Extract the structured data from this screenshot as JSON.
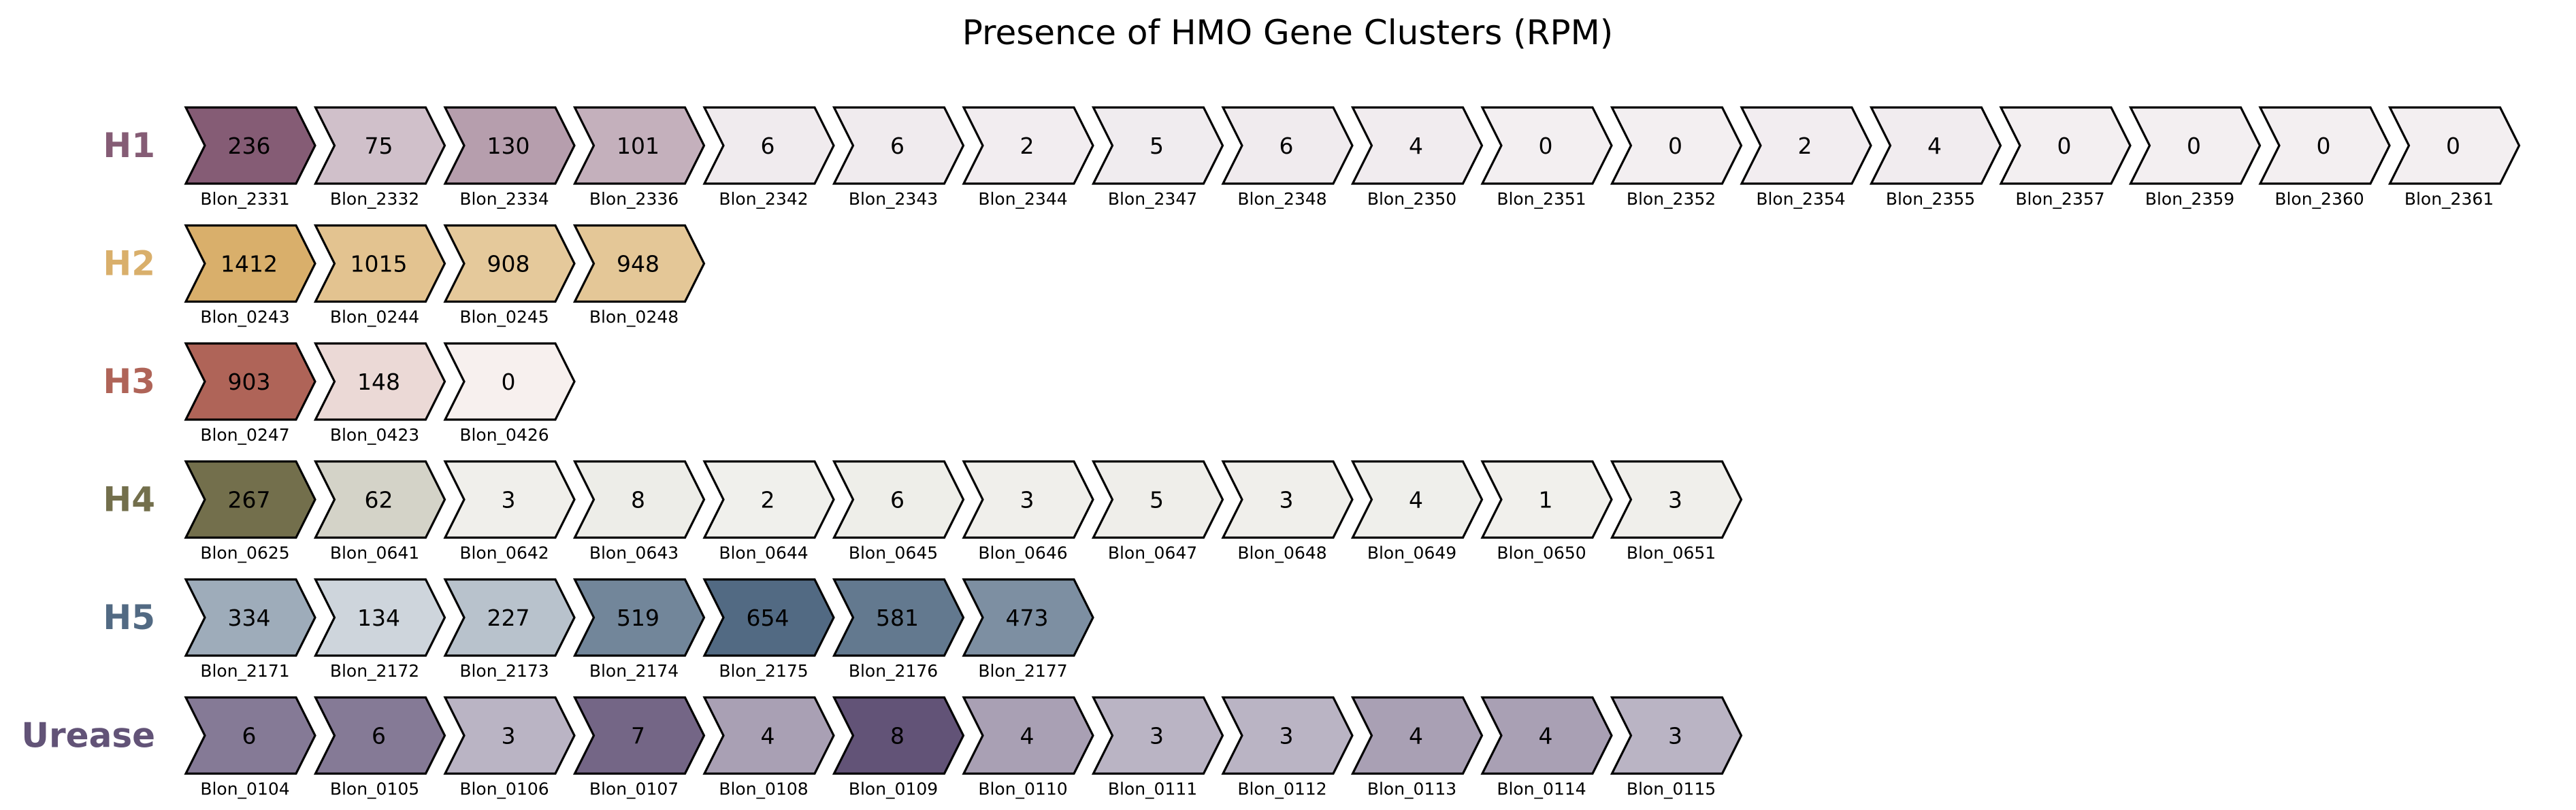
{
  "chart_data": {
    "type": "gene-cluster-diagram",
    "title": "Presence of HMO Gene Clusters (RPM)",
    "clusters": [
      {
        "name": "H1",
        "color": "#855c75",
        "genes": [
          {
            "id": "Blon_2331",
            "value": 236
          },
          {
            "id": "Blon_2332",
            "value": 75
          },
          {
            "id": "Blon_2334",
            "value": 130
          },
          {
            "id": "Blon_2336",
            "value": 101
          },
          {
            "id": "Blon_2342",
            "value": 6
          },
          {
            "id": "Blon_2343",
            "value": 6
          },
          {
            "id": "Blon_2344",
            "value": 2
          },
          {
            "id": "Blon_2347",
            "value": 5
          },
          {
            "id": "Blon_2348",
            "value": 6
          },
          {
            "id": "Blon_2350",
            "value": 4
          },
          {
            "id": "Blon_2351",
            "value": 0
          },
          {
            "id": "Blon_2352",
            "value": 0
          },
          {
            "id": "Blon_2354",
            "value": 2
          },
          {
            "id": "Blon_2355",
            "value": 4
          },
          {
            "id": "Blon_2357",
            "value": 0
          },
          {
            "id": "Blon_2359",
            "value": 0
          },
          {
            "id": "Blon_2360",
            "value": 0
          },
          {
            "id": "Blon_2361",
            "value": 0
          }
        ]
      },
      {
        "name": "H2",
        "color": "#d9af6b",
        "genes": [
          {
            "id": "Blon_0243",
            "value": 1412
          },
          {
            "id": "Blon_0244",
            "value": 1015
          },
          {
            "id": "Blon_0245",
            "value": 908
          },
          {
            "id": "Blon_0248",
            "value": 948
          }
        ]
      },
      {
        "name": "H3",
        "color": "#af6458",
        "genes": [
          {
            "id": "Blon_0247",
            "value": 903
          },
          {
            "id": "Blon_0423",
            "value": 148
          },
          {
            "id": "Blon_0426",
            "value": 0
          }
        ]
      },
      {
        "name": "H4",
        "color": "#736f4c",
        "genes": [
          {
            "id": "Blon_0625",
            "value": 267
          },
          {
            "id": "Blon_0641",
            "value": 62
          },
          {
            "id": "Blon_0642",
            "value": 3
          },
          {
            "id": "Blon_0643",
            "value": 8
          },
          {
            "id": "Blon_0644",
            "value": 2
          },
          {
            "id": "Blon_0645",
            "value": 6
          },
          {
            "id": "Blon_0646",
            "value": 3
          },
          {
            "id": "Blon_0647",
            "value": 5
          },
          {
            "id": "Blon_0648",
            "value": 3
          },
          {
            "id": "Blon_0649",
            "value": 4
          },
          {
            "id": "Blon_0650",
            "value": 1
          },
          {
            "id": "Blon_0651",
            "value": 3
          }
        ]
      },
      {
        "name": "H5",
        "color": "#526a83",
        "genes": [
          {
            "id": "Blon_2171",
            "value": 334
          },
          {
            "id": "Blon_2172",
            "value": 134
          },
          {
            "id": "Blon_2173",
            "value": 227
          },
          {
            "id": "Blon_2174",
            "value": 519
          },
          {
            "id": "Blon_2175",
            "value": 654
          },
          {
            "id": "Blon_2176",
            "value": 581
          },
          {
            "id": "Blon_2177",
            "value": 473
          }
        ]
      },
      {
        "name": "Urease",
        "color": "#625377",
        "genes": [
          {
            "id": "Blon_0104",
            "value": 6
          },
          {
            "id": "Blon_0105",
            "value": 6
          },
          {
            "id": "Blon_0106",
            "value": 3
          },
          {
            "id": "Blon_0107",
            "value": 7
          },
          {
            "id": "Blon_0108",
            "value": 4
          },
          {
            "id": "Blon_0109",
            "value": 8
          },
          {
            "id": "Blon_0110",
            "value": 4
          },
          {
            "id": "Blon_0111",
            "value": 3
          },
          {
            "id": "Blon_0112",
            "value": 3
          },
          {
            "id": "Blon_0113",
            "value": 4
          },
          {
            "id": "Blon_0114",
            "value": 4
          },
          {
            "id": "Blon_0115",
            "value": 3
          }
        ]
      }
    ]
  }
}
